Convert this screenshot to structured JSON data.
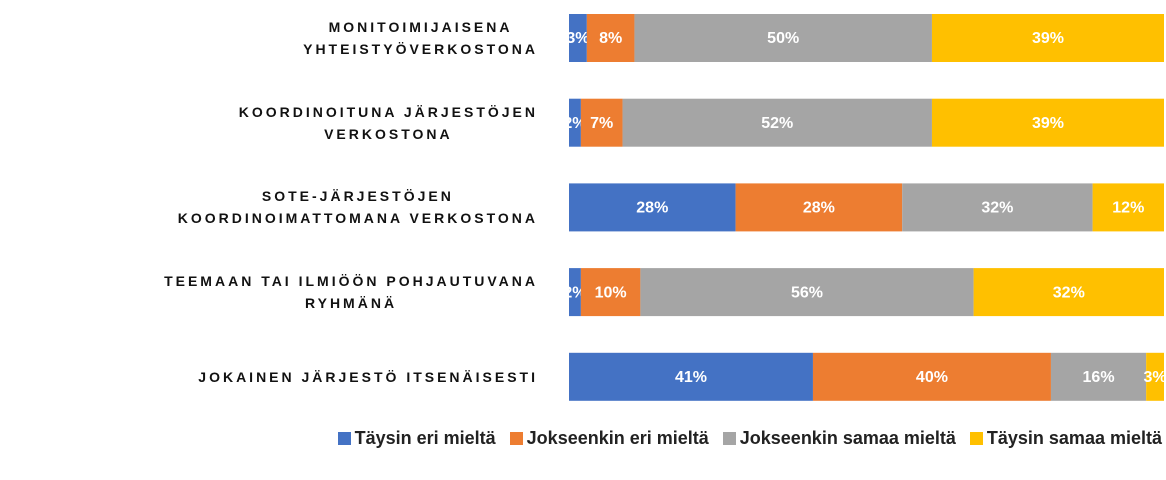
{
  "chart_data": {
    "type": "stacked-bar-horizontal",
    "categories": [
      "MONITOIMIJAISENA\nYHTEISTYÖVERKOSTONA",
      "KOORDINOITUNA JÄRJESTÖJEN\nVERKOSTONA",
      "SOTE-JÄRJESTÖJEN\nKOORDINOIMATTOMANA VERKOSTONA",
      "TEEMAAN TAI ILMIÖÖN POHJAUTUVANA\nRYHMÄNÄ",
      "JOKAINEN JÄRJESTÖ ITSENÄISESTI"
    ],
    "xlim": [
      0,
      100
    ],
    "series": [
      {
        "name": "Täysin eri mieltä",
        "color": "#4472c4",
        "values": [
          3,
          2,
          28,
          2,
          41
        ],
        "value_labels": [
          "3%",
          "2%",
          "28%",
          "2%",
          "41%"
        ]
      },
      {
        "name": "Jokseenkin eri mieltä",
        "color": "#ed7d31",
        "values": [
          8,
          7,
          28,
          10,
          40
        ],
        "value_labels": [
          "8%",
          "7%",
          "28%",
          "10%",
          "40%"
        ]
      },
      {
        "name": "Jokseenkin samaa mieltä",
        "color": "#a5a5a5",
        "values": [
          50,
          52,
          32,
          56,
          16
        ],
        "value_labels": [
          "50%",
          "52%",
          "32%",
          "56%",
          "16%"
        ]
      },
      {
        "name": "Täysin samaa mieltä",
        "color": "#ffc000",
        "values": [
          39,
          39,
          12,
          32,
          3
        ],
        "value_labels": [
          "39%",
          "39%",
          "12%",
          "32%",
          "3%"
        ]
      }
    ],
    "legend": "bottom"
  }
}
